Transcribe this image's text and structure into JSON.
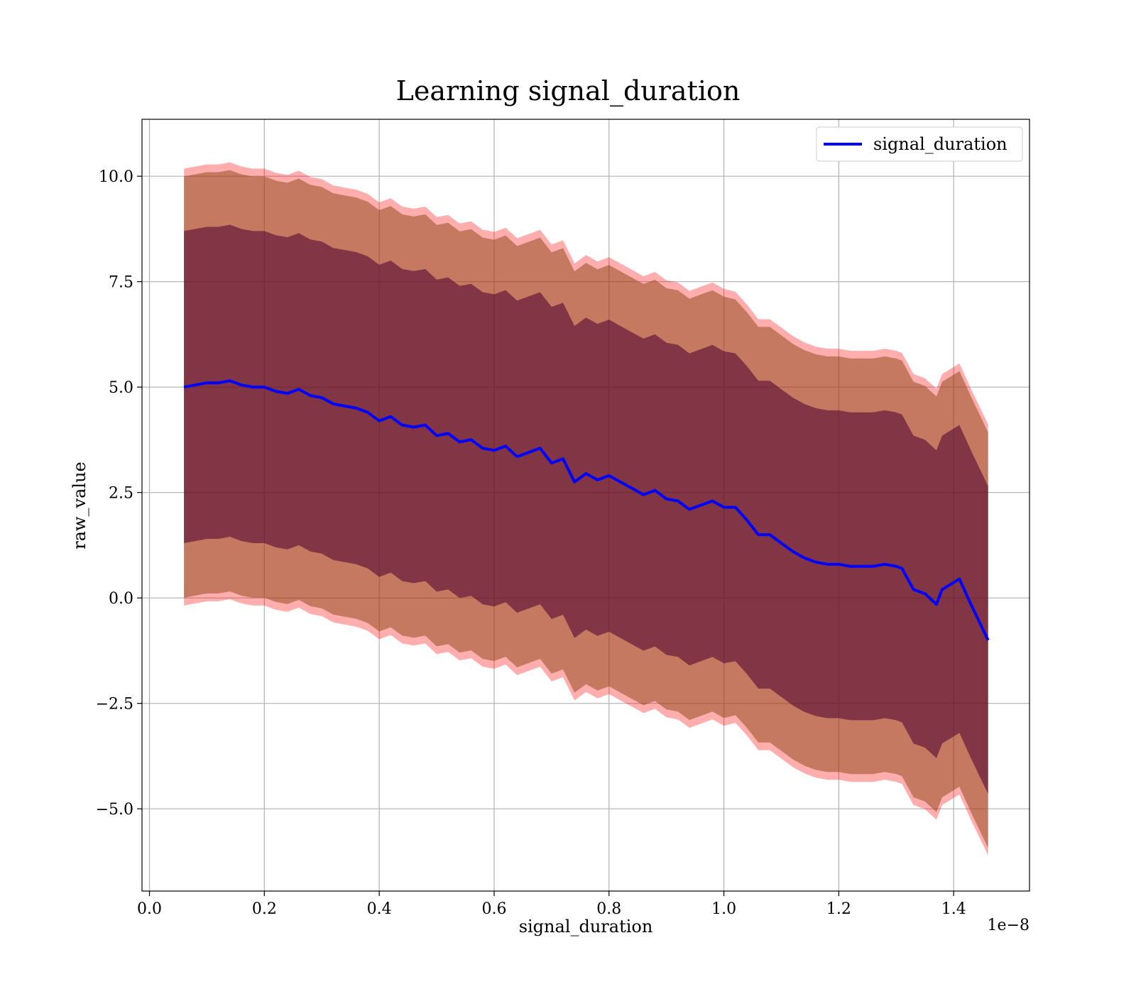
{
  "chart_data": {
    "type": "line",
    "title": "Learning signal_duration",
    "xlabel": "signal_duration",
    "ylabel": "raw_value",
    "x_offset_label": "1e−8",
    "xlim": [
      -0.013,
      1.532
    ],
    "ylim": [
      -6.95,
      11.35
    ],
    "x_ticks": [
      0.0,
      0.2,
      0.4,
      0.6,
      0.8,
      1.0,
      1.2,
      1.4
    ],
    "x_tick_labels": [
      "0.0",
      "0.2",
      "0.4",
      "0.6",
      "0.8",
      "1.0",
      "1.2",
      "1.4"
    ],
    "y_ticks": [
      -5.0,
      -2.5,
      0.0,
      2.5,
      5.0,
      7.5,
      10.0
    ],
    "y_tick_labels": [
      "−5.0",
      "−2.5",
      "0.0",
      "2.5",
      "5.0",
      "7.5",
      "10.0"
    ],
    "grid": true,
    "legend_position": "top-right",
    "colors": {
      "line": "#0000ff",
      "band_outer": "#ff0000",
      "band_middle": "#8b4513",
      "band_inner": "#4b0030"
    },
    "series": [
      {
        "name": "signal_duration",
        "x": [
          0.06,
          0.08,
          0.1,
          0.12,
          0.14,
          0.16,
          0.18,
          0.2,
          0.22,
          0.24,
          0.26,
          0.28,
          0.3,
          0.32,
          0.34,
          0.36,
          0.38,
          0.4,
          0.42,
          0.44,
          0.46,
          0.48,
          0.5,
          0.52,
          0.54,
          0.56,
          0.58,
          0.6,
          0.62,
          0.64,
          0.66,
          0.68,
          0.7,
          0.72,
          0.74,
          0.76,
          0.78,
          0.8,
          0.82,
          0.84,
          0.86,
          0.88,
          0.9,
          0.92,
          0.94,
          0.96,
          0.98,
          1.0,
          1.02,
          1.04,
          1.06,
          1.08,
          1.1,
          1.12,
          1.14,
          1.16,
          1.18,
          1.2,
          1.22,
          1.24,
          1.26,
          1.28,
          1.3,
          1.31,
          1.33,
          1.35,
          1.37,
          1.38,
          1.41,
          1.43,
          1.46
        ],
        "values": [
          5.0,
          5.05,
          5.1,
          5.1,
          5.15,
          5.05,
          5.0,
          5.0,
          4.9,
          4.85,
          4.95,
          4.8,
          4.75,
          4.6,
          4.55,
          4.5,
          4.4,
          4.2,
          4.3,
          4.1,
          4.05,
          4.1,
          3.85,
          3.9,
          3.7,
          3.75,
          3.55,
          3.5,
          3.6,
          3.35,
          3.45,
          3.55,
          3.2,
          3.3,
          2.75,
          2.95,
          2.8,
          2.9,
          2.75,
          2.6,
          2.45,
          2.55,
          2.35,
          2.3,
          2.1,
          2.2,
          2.3,
          2.15,
          2.15,
          1.85,
          1.5,
          1.5,
          1.3,
          1.1,
          0.95,
          0.85,
          0.8,
          0.8,
          0.75,
          0.75,
          0.75,
          0.8,
          0.75,
          0.7,
          0.2,
          0.1,
          -0.15,
          0.2,
          0.45,
          -0.15,
          -1.0
        ],
        "sd": [
          3.7,
          3.7,
          3.7,
          3.7,
          3.7,
          3.7,
          3.7,
          3.7,
          3.7,
          3.7,
          3.7,
          3.7,
          3.7,
          3.7,
          3.7,
          3.7,
          3.7,
          3.7,
          3.7,
          3.7,
          3.7,
          3.7,
          3.7,
          3.7,
          3.7,
          3.7,
          3.7,
          3.7,
          3.7,
          3.7,
          3.7,
          3.7,
          3.7,
          3.7,
          3.7,
          3.7,
          3.7,
          3.7,
          3.7,
          3.7,
          3.7,
          3.7,
          3.7,
          3.7,
          3.7,
          3.7,
          3.7,
          3.7,
          3.65,
          3.65,
          3.65,
          3.65,
          3.65,
          3.65,
          3.65,
          3.65,
          3.65,
          3.65,
          3.65,
          3.65,
          3.65,
          3.65,
          3.65,
          3.65,
          3.65,
          3.65,
          3.65,
          3.65,
          3.65,
          3.65,
          3.65
        ],
        "band_multipliers": [
          1.0,
          1.35,
          1.4
        ]
      }
    ]
  }
}
